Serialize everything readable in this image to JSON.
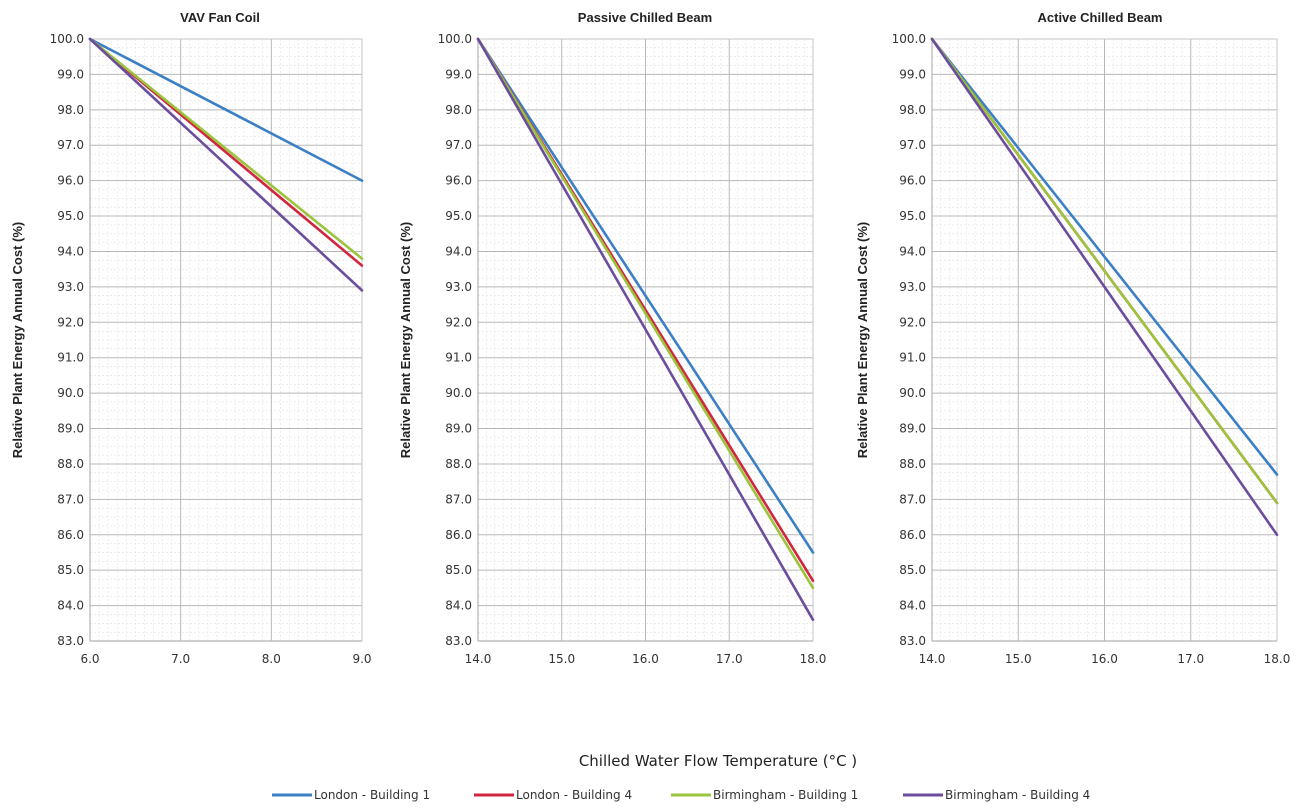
{
  "shared": {
    "xlabel": "Chilled Water Flow Temperature (°C )",
    "ylabel": "Relative Plant Energy Annual Cost (%)"
  },
  "legend": [
    {
      "name": "London - Building 1",
      "color": "#3b7fc4"
    },
    {
      "name": "London - Building 4",
      "color": "#d0263f"
    },
    {
      "name": "Birmingham - Building 1",
      "color": "#9bc43c"
    },
    {
      "name": "Birmingham - Building 4",
      "color": "#6b4d9e"
    }
  ],
  "chart_data": [
    {
      "type": "line",
      "title": "VAV Fan Coil",
      "xlabel": "",
      "ylabel": "Relative Plant Energy Annual Cost (%)",
      "xlim": [
        6.0,
        9.0
      ],
      "ylim": [
        83.0,
        100.0
      ],
      "xticks": [
        "6.0",
        "7.0",
        "8.0",
        "9.0"
      ],
      "yticks": [
        "83.0",
        "84.0",
        "85.0",
        "86.0",
        "87.0",
        "88.0",
        "89.0",
        "90.0",
        "91.0",
        "92.0",
        "93.0",
        "94.0",
        "95.0",
        "96.0",
        "97.0",
        "98.0",
        "99.0",
        "100.0"
      ],
      "grid": true,
      "series": [
        {
          "name": "London - Building 1",
          "x": [
            6.0,
            9.0
          ],
          "y": [
            100.0,
            96.0
          ]
        },
        {
          "name": "London - Building 4",
          "x": [
            6.0,
            9.0
          ],
          "y": [
            100.0,
            93.6
          ]
        },
        {
          "name": "Birmingham - Building 1",
          "x": [
            6.0,
            9.0
          ],
          "y": [
            100.0,
            93.8
          ]
        },
        {
          "name": "Birmingham - Building 4",
          "x": [
            6.0,
            9.0
          ],
          "y": [
            100.0,
            92.9
          ]
        }
      ]
    },
    {
      "type": "line",
      "title": "Passive Chilled Beam",
      "xlabel": "",
      "ylabel": "Relative Plant Energy Annual Cost (%)",
      "xlim": [
        14.0,
        18.0
      ],
      "ylim": [
        83.0,
        100.0
      ],
      "xticks": [
        "14.0",
        "15.0",
        "16.0",
        "17.0",
        "18.0"
      ],
      "yticks": [
        "83.0",
        "84.0",
        "85.0",
        "86.0",
        "87.0",
        "88.0",
        "89.0",
        "90.0",
        "91.0",
        "92.0",
        "93.0",
        "94.0",
        "95.0",
        "96.0",
        "97.0",
        "98.0",
        "99.0",
        "100.0"
      ],
      "grid": true,
      "series": [
        {
          "name": "London - Building 1",
          "x": [
            14.0,
            18.0
          ],
          "y": [
            100.0,
            85.5
          ]
        },
        {
          "name": "London - Building 4",
          "x": [
            14.0,
            18.0
          ],
          "y": [
            100.0,
            84.7
          ]
        },
        {
          "name": "Birmingham - Building 1",
          "x": [
            14.0,
            18.0
          ],
          "y": [
            100.0,
            84.5
          ]
        },
        {
          "name": "Birmingham - Building 4",
          "x": [
            14.0,
            18.0
          ],
          "y": [
            100.0,
            83.6
          ]
        }
      ]
    },
    {
      "type": "line",
      "title": "Active Chilled Beam",
      "xlabel": "",
      "ylabel": "Relative Plant Energy Annual Cost (%)",
      "xlim": [
        14.0,
        18.0
      ],
      "ylim": [
        83.0,
        100.0
      ],
      "xticks": [
        "14.0",
        "15.0",
        "16.0",
        "17.0",
        "18.0"
      ],
      "yticks": [
        "83.0",
        "84.0",
        "85.0",
        "86.0",
        "87.0",
        "88.0",
        "89.0",
        "90.0",
        "91.0",
        "92.0",
        "93.0",
        "94.0",
        "95.0",
        "96.0",
        "97.0",
        "98.0",
        "99.0",
        "100.0"
      ],
      "grid": true,
      "series": [
        {
          "name": "London - Building 1",
          "x": [
            14.0,
            18.0
          ],
          "y": [
            100.0,
            87.7
          ]
        },
        {
          "name": "London - Building 4",
          "x": [
            14.0,
            18.0
          ],
          "y": [
            100.0,
            86.9
          ]
        },
        {
          "name": "Birmingham - Building 1",
          "x": [
            14.0,
            18.0
          ],
          "y": [
            100.0,
            86.9
          ]
        },
        {
          "name": "Birmingham - Building 4",
          "x": [
            14.0,
            18.0
          ],
          "y": [
            100.0,
            86.0
          ]
        }
      ]
    }
  ]
}
